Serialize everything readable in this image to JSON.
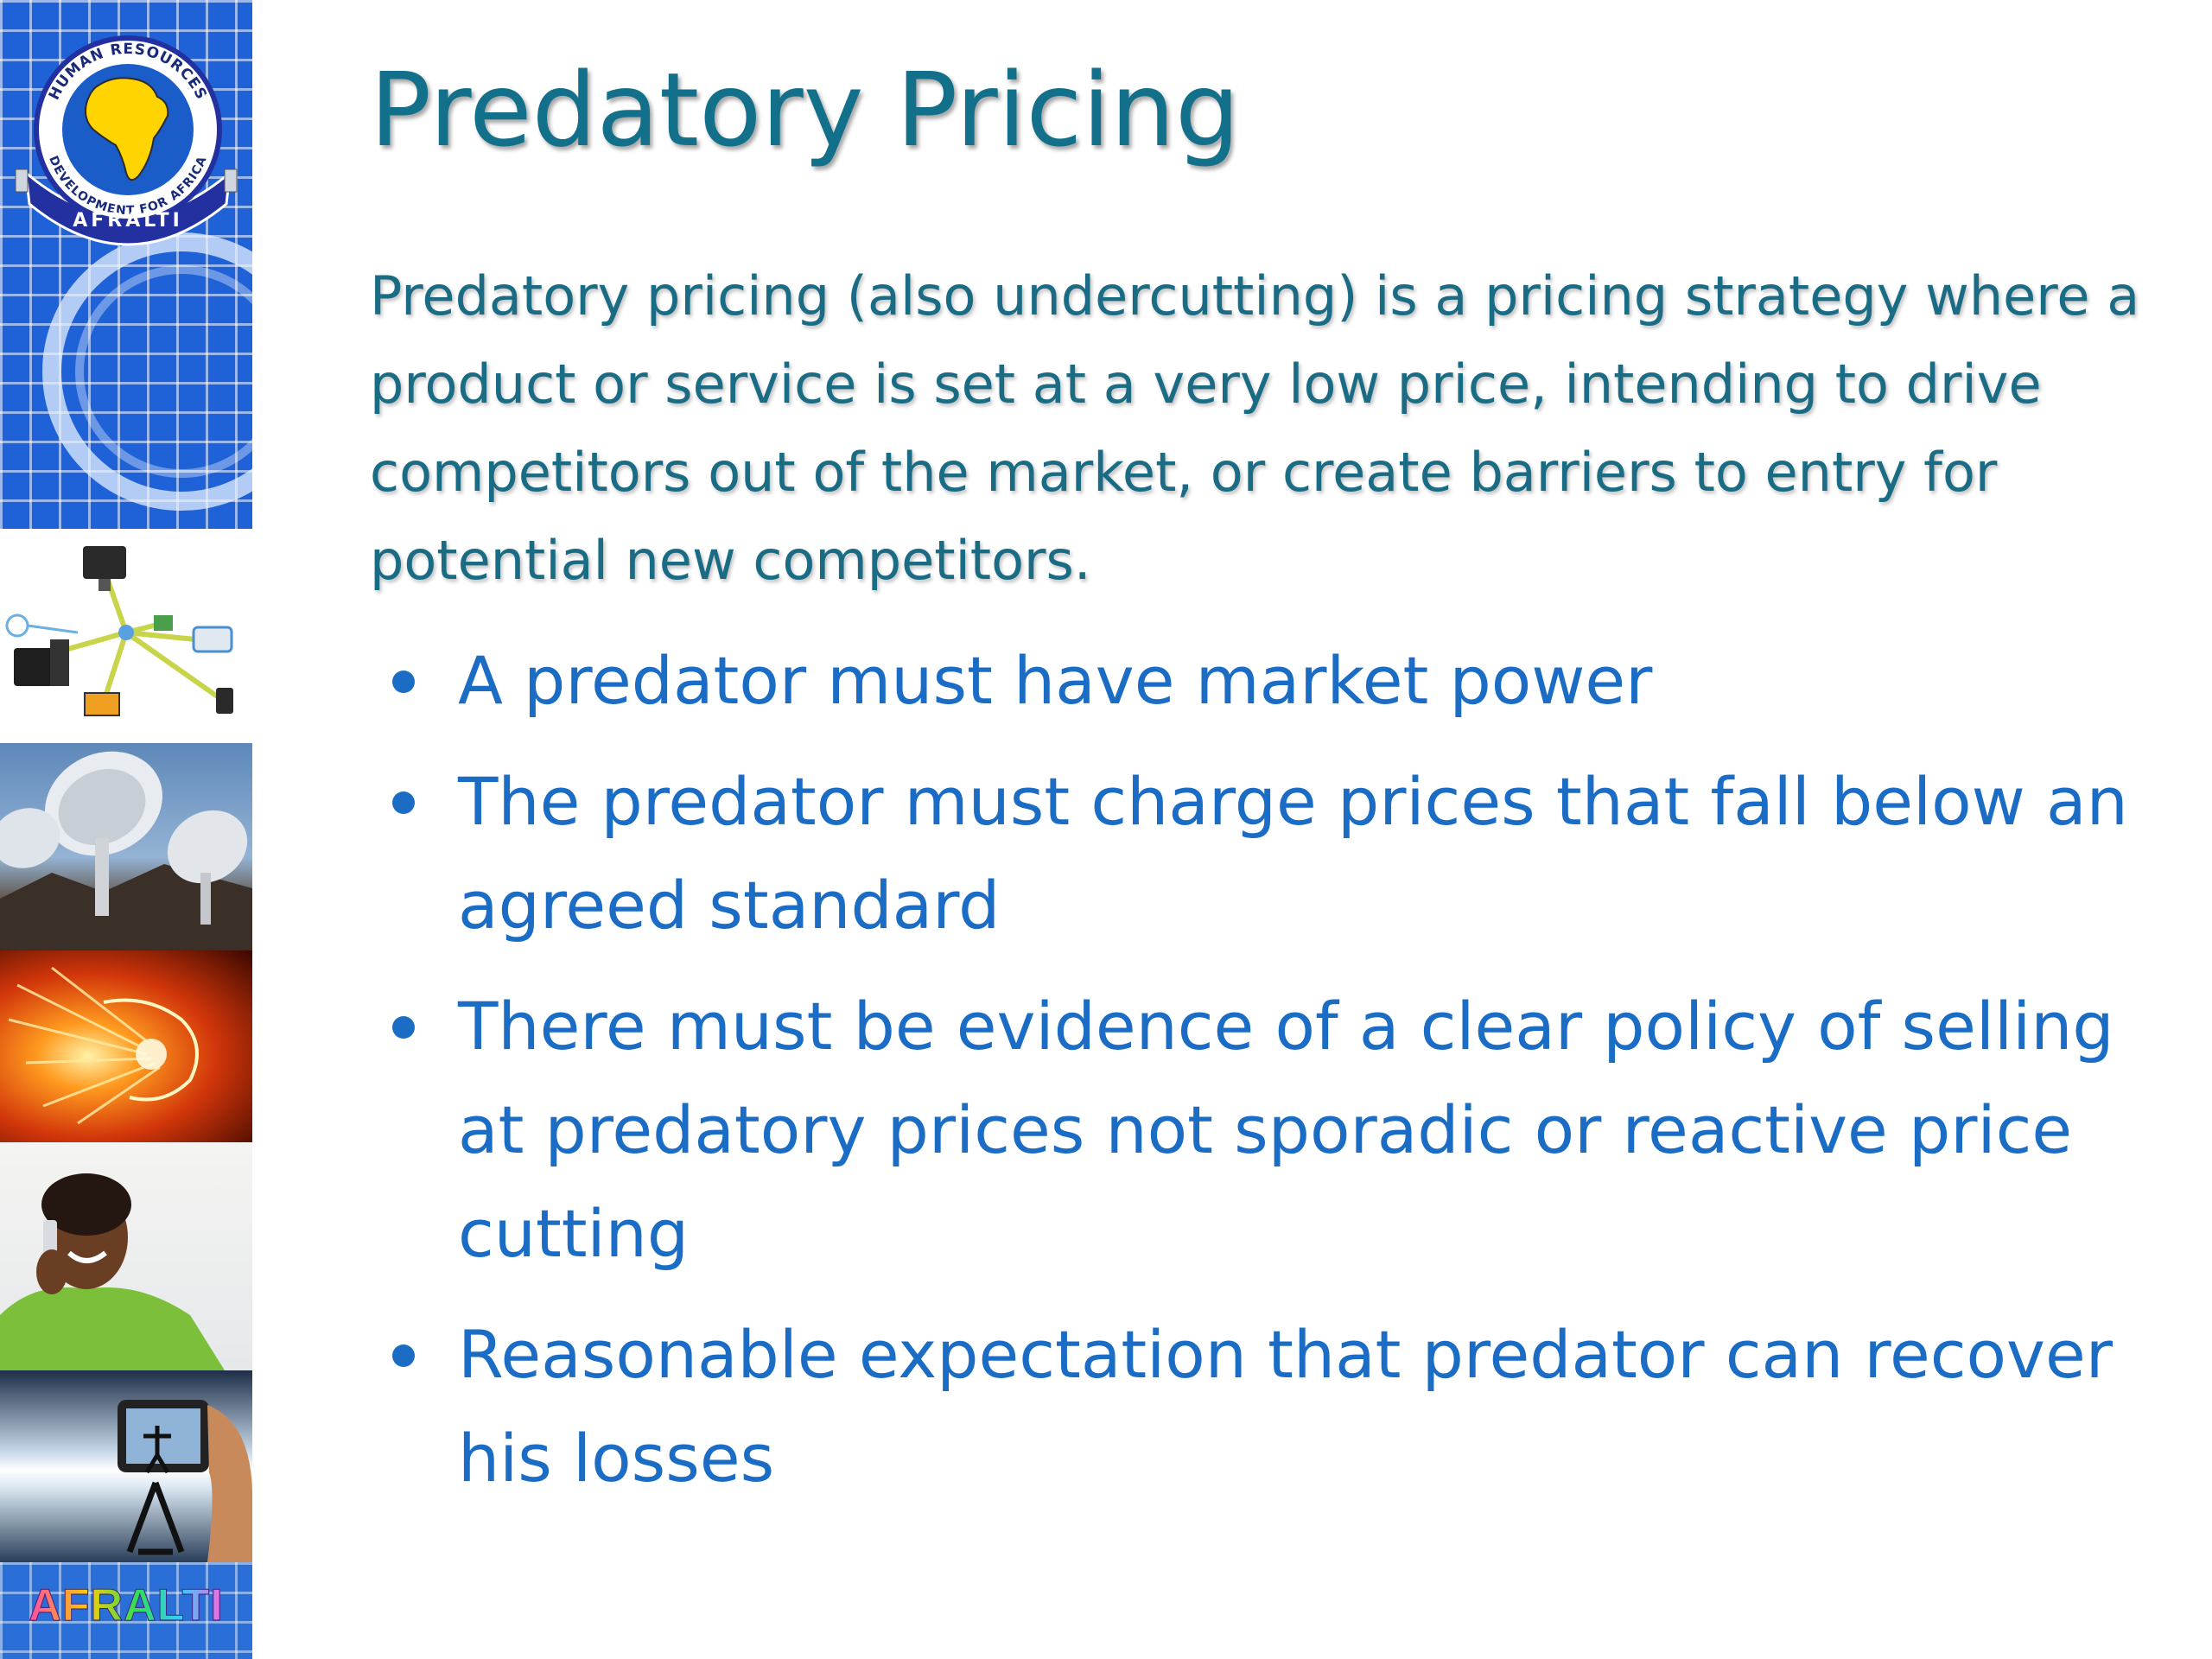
{
  "slide": {
    "title": "Predatory Pricing",
    "intro": "Predatory pricing (also undercutting) is a pricing strategy where a product or service is set at a very low price, intending to drive competitors out of the market, or create barriers to entry for potential new competitors.",
    "bullets": [
      "A predator must have market power",
      "The predator must charge prices that fall below an agreed standard",
      "There must be evidence of a clear policy of selling at predatory prices not sporadic or reactive price cutting",
      "Reasonable expectation that predator can recover his losses"
    ]
  },
  "sidebar": {
    "logo": {
      "ring_top_text": "HUMAN RESOURCES",
      "ring_bottom_text": "DEVELOPMENT FOR AFRICA",
      "ribbon_text": "AFRALTI"
    },
    "brand_text": "AFRALTI",
    "images": [
      "network-devices",
      "satellite-dishes",
      "fiber-optic-globe",
      "woman-on-phone",
      "camera-phone"
    ]
  },
  "colors": {
    "title": "#13708b",
    "intro": "#1a6b84",
    "bullets": "#1b6cc4",
    "sidebar_blue": "#1f62d8"
  }
}
